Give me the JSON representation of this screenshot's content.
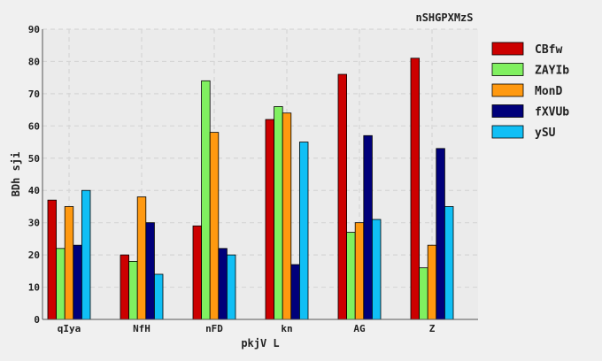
{
  "chart_data": {
    "type": "bar",
    "title": "nSHGPXMzS",
    "xlabel": "pkjV  L",
    "ylabel": "BDh sji",
    "ylim": [
      0,
      90
    ],
    "yticks": [
      0,
      10,
      20,
      30,
      40,
      50,
      60,
      70,
      80,
      90
    ],
    "grid": true,
    "legend_position": "right",
    "categories": [
      "qIya",
      "NfH",
      "nFD",
      "kn",
      "AG",
      "Z"
    ],
    "series": [
      {
        "name": "CBfw",
        "color": "#cc0000",
        "values": [
          37,
          20,
          29,
          62,
          76,
          81
        ]
      },
      {
        "name": "ZAYIb",
        "color": "#80f060",
        "values": [
          22,
          18,
          74,
          66,
          27,
          16
        ]
      },
      {
        "name": "MonD",
        "color": "#ff9910",
        "values": [
          35,
          38,
          58,
          64,
          30,
          23
        ]
      },
      {
        "name": "fXVUb",
        "color": "#00007a",
        "values": [
          23,
          30,
          22,
          17,
          57,
          53
        ]
      },
      {
        "name": "ySU",
        "color": "#10bff5",
        "values": [
          40,
          14,
          20,
          55,
          31,
          35
        ]
      }
    ]
  }
}
